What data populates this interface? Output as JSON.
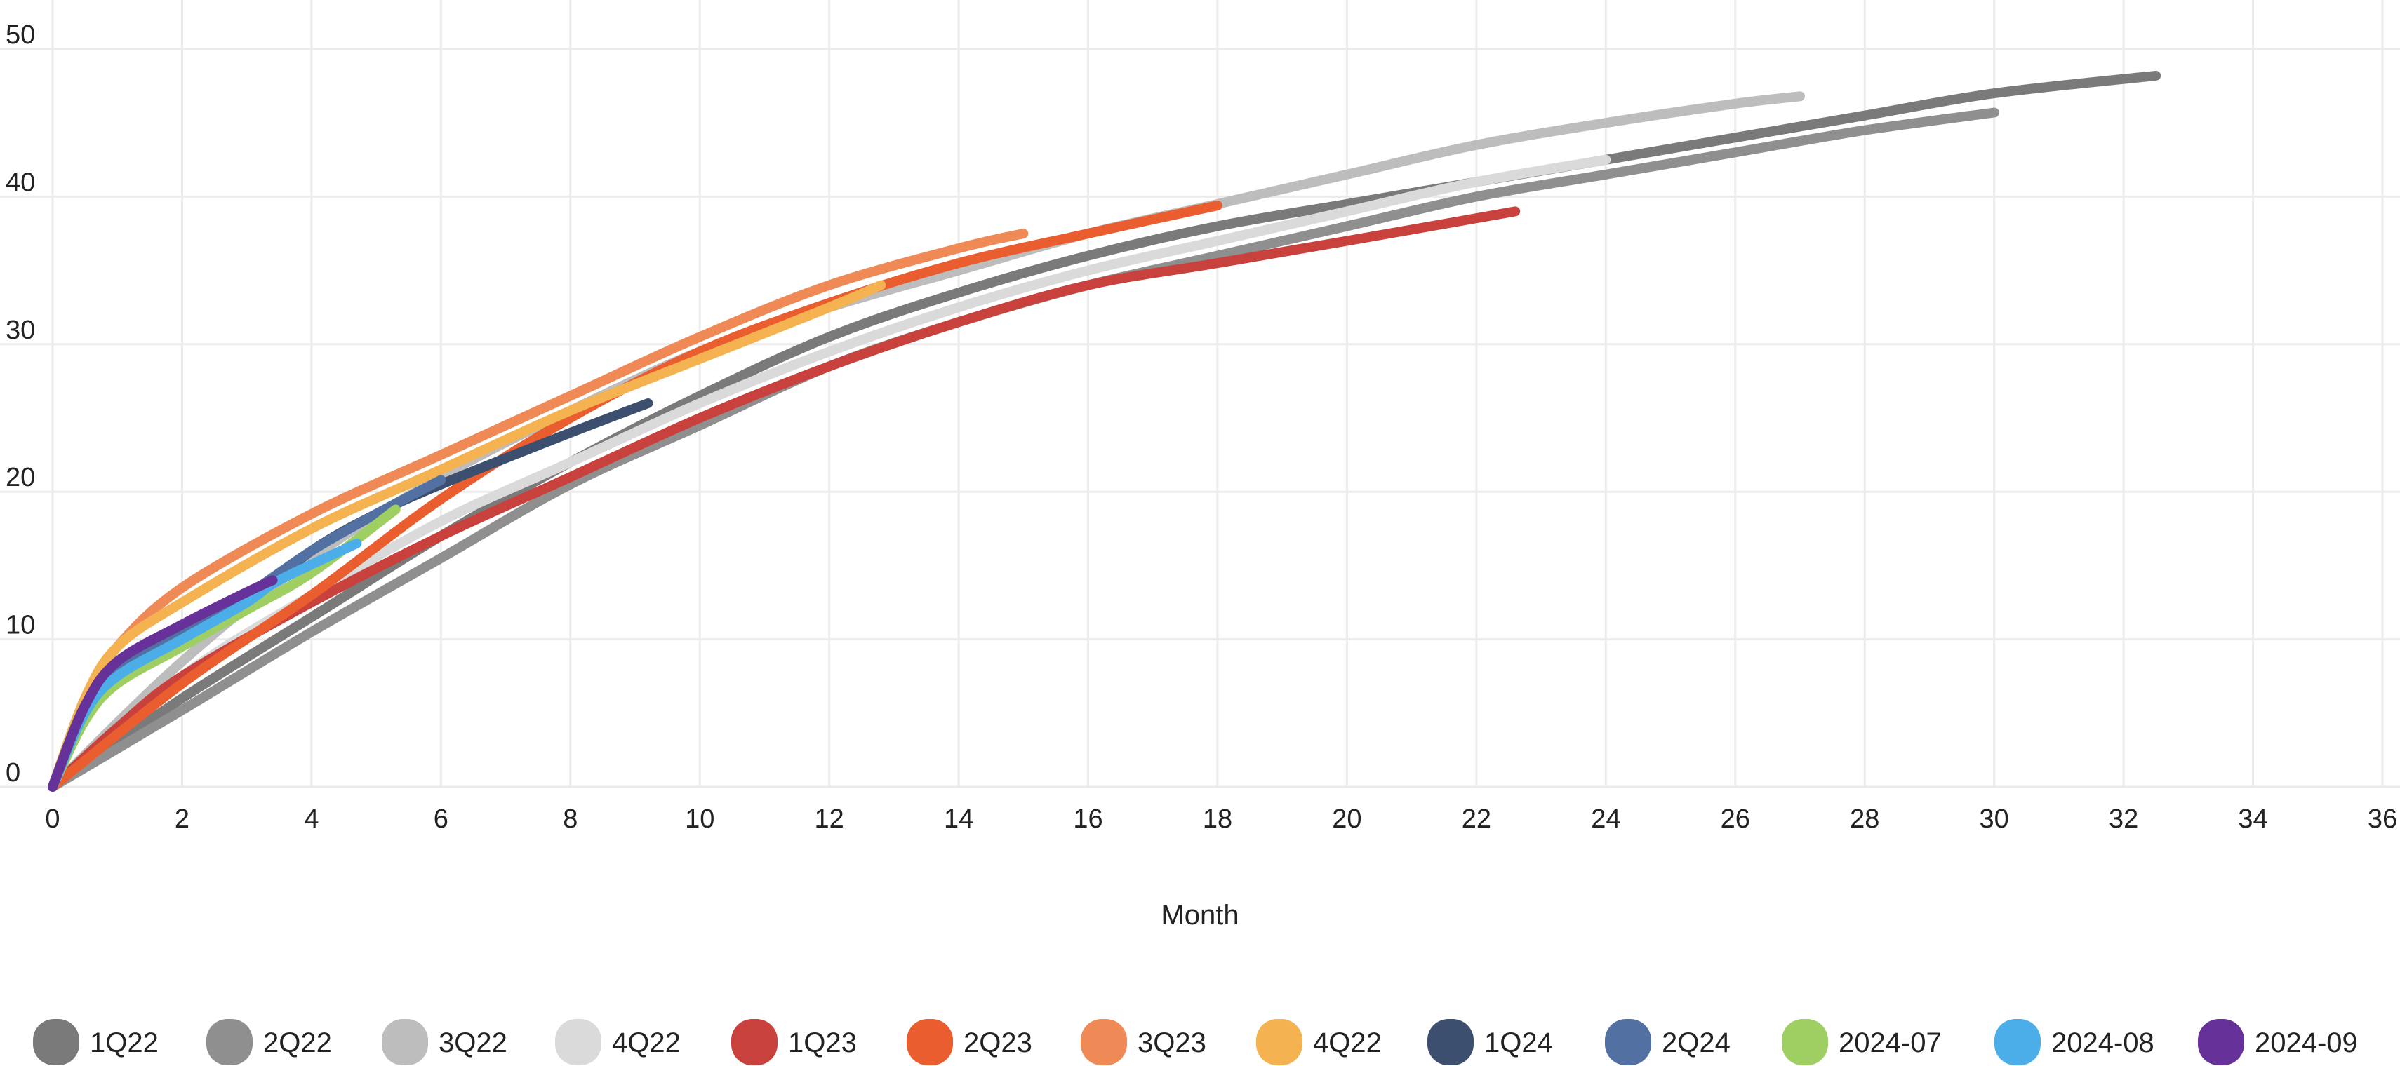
{
  "chart_data": {
    "type": "line",
    "title": "",
    "xlabel": "Month",
    "ylabel": "",
    "xlim": [
      0,
      36
    ],
    "ylim": [
      0,
      50
    ],
    "xticks": [
      0,
      2,
      4,
      6,
      8,
      10,
      12,
      14,
      16,
      18,
      20,
      22,
      24,
      26,
      28,
      30,
      32,
      34,
      36
    ],
    "yticks": [
      0,
      10,
      20,
      30,
      40,
      50
    ],
    "grid": true,
    "legend_position": "bottom",
    "series": [
      {
        "name": "1Q22",
        "color": "#7a7a7a",
        "points": [
          [
            0,
            0
          ],
          [
            2,
            6
          ],
          [
            4,
            11.5
          ],
          [
            6,
            17
          ],
          [
            8,
            22
          ],
          [
            10,
            26.5
          ],
          [
            12,
            30.5
          ],
          [
            14,
            33.5
          ],
          [
            16,
            36
          ],
          [
            18,
            38
          ],
          [
            20,
            39.5
          ],
          [
            22,
            41
          ],
          [
            24,
            42.5
          ],
          [
            26,
            44
          ],
          [
            28,
            45.5
          ],
          [
            30,
            47
          ],
          [
            32.5,
            48.2
          ]
        ]
      },
      {
        "name": "2Q22",
        "color": "#8f8f8f",
        "points": [
          [
            0,
            0
          ],
          [
            2,
            5.2
          ],
          [
            4,
            10.5
          ],
          [
            6,
            15.5
          ],
          [
            8,
            20.5
          ],
          [
            10,
            24.5
          ],
          [
            12,
            28.5
          ],
          [
            14,
            31.5
          ],
          [
            16,
            34
          ],
          [
            18,
            36
          ],
          [
            20,
            38
          ],
          [
            22,
            40
          ],
          [
            24,
            41.5
          ],
          [
            26,
            43
          ],
          [
            28,
            44.5
          ],
          [
            30,
            45.7
          ]
        ]
      },
      {
        "name": "3Q22",
        "color": "#bdbdbd",
        "points": [
          [
            0,
            0
          ],
          [
            2,
            8.5
          ],
          [
            4,
            15.5
          ],
          [
            6,
            21
          ],
          [
            8,
            25.5
          ],
          [
            10,
            29.5
          ],
          [
            12,
            32.5
          ],
          [
            14,
            35
          ],
          [
            16,
            37.5
          ],
          [
            18,
            39.5
          ],
          [
            20,
            41.5
          ],
          [
            22,
            43.5
          ],
          [
            24,
            45
          ],
          [
            26,
            46.3
          ],
          [
            27,
            46.8
          ]
        ]
      },
      {
        "name": "4Q22",
        "color": "#dadada",
        "points": [
          [
            0,
            0
          ],
          [
            2,
            7.5
          ],
          [
            4,
            13
          ],
          [
            6,
            18
          ],
          [
            8,
            22
          ],
          [
            10,
            26
          ],
          [
            12,
            29.5
          ],
          [
            14,
            32.5
          ],
          [
            16,
            35
          ],
          [
            18,
            37
          ],
          [
            20,
            39
          ],
          [
            22,
            41
          ],
          [
            24,
            42.5
          ]
        ]
      },
      {
        "name": "1Q23",
        "color": "#c8413d",
        "points": [
          [
            0,
            0
          ],
          [
            1,
            4
          ],
          [
            2,
            7.5
          ],
          [
            4,
            12.5
          ],
          [
            6,
            17
          ],
          [
            8,
            21
          ],
          [
            10,
            25
          ],
          [
            12,
            28.5
          ],
          [
            14,
            31.5
          ],
          [
            16,
            34
          ],
          [
            18,
            35.5
          ],
          [
            20,
            37
          ],
          [
            22.6,
            39
          ]
        ]
      },
      {
        "name": "2Q23",
        "color": "#e95d2f",
        "points": [
          [
            0,
            0
          ],
          [
            2,
            7
          ],
          [
            4,
            13
          ],
          [
            6,
            19.5
          ],
          [
            8,
            25
          ],
          [
            10,
            29.5
          ],
          [
            12,
            32.8
          ],
          [
            14,
            35.5
          ],
          [
            16,
            37.5
          ],
          [
            18,
            39.4
          ]
        ]
      },
      {
        "name": "3Q23",
        "color": "#ef8a57",
        "points": [
          [
            0,
            0
          ],
          [
            0.5,
            6
          ],
          [
            1,
            9.5
          ],
          [
            2,
            13.5
          ],
          [
            4,
            18.5
          ],
          [
            6,
            22.5
          ],
          [
            8,
            26.5
          ],
          [
            10,
            30.5
          ],
          [
            12,
            34
          ],
          [
            14,
            36.5
          ],
          [
            15,
            37.5
          ]
        ]
      },
      {
        "name": "4Q22",
        "color": "#f4b251",
        "points": [
          [
            0,
            0
          ],
          [
            0.5,
            6
          ],
          [
            1,
            9.5
          ],
          [
            2,
            12.5
          ],
          [
            4,
            17.5
          ],
          [
            6,
            21.5
          ],
          [
            8,
            25.5
          ],
          [
            10,
            29
          ],
          [
            12,
            32.5
          ],
          [
            12.8,
            34
          ]
        ]
      },
      {
        "name": "1Q24",
        "color": "#3d4f6e",
        "points": [
          [
            0,
            0
          ],
          [
            0.5,
            5.5
          ],
          [
            1,
            8
          ],
          [
            2,
            10.5
          ],
          [
            3,
            12.5
          ],
          [
            4,
            16
          ],
          [
            5,
            18.5
          ],
          [
            6,
            20.5
          ],
          [
            8,
            24
          ],
          [
            9.2,
            26
          ]
        ]
      },
      {
        "name": "2Q24",
        "color": "#5271a2",
        "points": [
          [
            0,
            0
          ],
          [
            0.5,
            5.5
          ],
          [
            1,
            8
          ],
          [
            2,
            10.5
          ],
          [
            3,
            13
          ],
          [
            4,
            16
          ],
          [
            5,
            18.5
          ],
          [
            6,
            20.8
          ]
        ]
      },
      {
        "name": "2024-07",
        "color": "#9fcf62",
        "points": [
          [
            0,
            0
          ],
          [
            0.5,
            4.5
          ],
          [
            1,
            7
          ],
          [
            2,
            9.5
          ],
          [
            3,
            12
          ],
          [
            4,
            14.5
          ],
          [
            5.3,
            18.8
          ]
        ]
      },
      {
        "name": "2024-08",
        "color": "#4baee8",
        "points": [
          [
            0,
            0
          ],
          [
            0.5,
            5
          ],
          [
            1,
            7.5
          ],
          [
            2,
            10
          ],
          [
            3,
            12.5
          ],
          [
            3.5,
            14
          ],
          [
            4.7,
            16.5
          ]
        ]
      },
      {
        "name": "2024-09",
        "color": "#66329a",
        "points": [
          [
            0,
            0
          ],
          [
            0.5,
            5.5
          ],
          [
            1,
            8.5
          ],
          [
            2,
            11
          ],
          [
            3,
            13.2
          ],
          [
            3.4,
            14
          ]
        ]
      }
    ]
  }
}
